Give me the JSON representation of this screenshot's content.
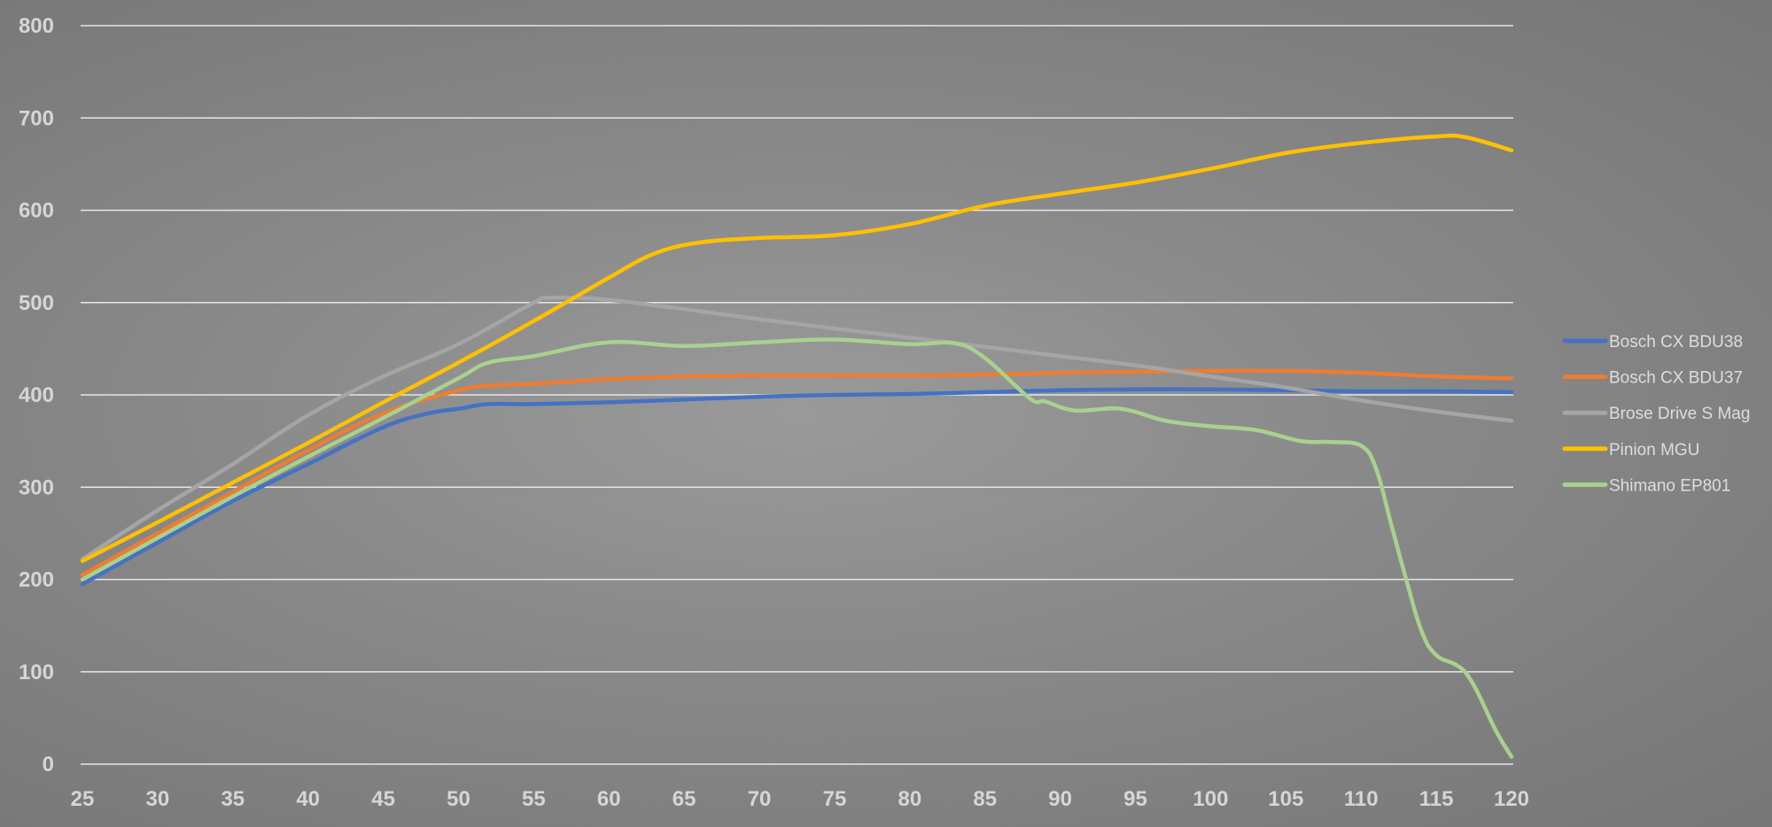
{
  "chart_data": {
    "type": "line",
    "title": "",
    "xlabel": "",
    "ylabel": "",
    "xlim": [
      25,
      120
    ],
    "ylim": [
      0,
      800
    ],
    "x_ticks": [
      25,
      30,
      35,
      40,
      45,
      50,
      55,
      60,
      65,
      70,
      75,
      80,
      85,
      90,
      95,
      100,
      105,
      110,
      115,
      120
    ],
    "y_ticks": [
      0,
      100,
      200,
      300,
      400,
      500,
      600,
      700,
      800
    ],
    "grid": "horizontal",
    "legend_position": "right",
    "series": [
      {
        "name": "Bosch CX BDU38",
        "color": "#4472c4",
        "x": [
          25,
          30,
          35,
          40,
          45,
          48,
          50,
          52,
          55,
          60,
          65,
          70,
          75,
          80,
          85,
          90,
          95,
          100,
          105,
          110,
          115,
          120
        ],
        "y": [
          195,
          240,
          285,
          325,
          365,
          380,
          385,
          390,
          390,
          392,
          395,
          398,
          400,
          401,
          403,
          405,
          406,
          406,
          405,
          404,
          404,
          403
        ]
      },
      {
        "name": "Bosch CX BDU37",
        "color": "#ed7d31",
        "x": [
          25,
          30,
          35,
          40,
          45,
          50,
          52,
          55,
          60,
          65,
          70,
          75,
          80,
          85,
          90,
          95,
          100,
          105,
          110,
          115,
          120
        ],
        "y": [
          205,
          250,
          295,
          340,
          380,
          405,
          410,
          412,
          417,
          420,
          421,
          421,
          421,
          422,
          424,
          425,
          426,
          426,
          424,
          420,
          418
        ]
      },
      {
        "name": "Brose Drive S Mag",
        "color": "#a5a5a5",
        "x": [
          25,
          30,
          35,
          40,
          45,
          50,
          55,
          56,
          58,
          60,
          65,
          70,
          75,
          80,
          85,
          90,
          95,
          100,
          105,
          110,
          115,
          120
        ],
        "y": [
          222,
          275,
          325,
          378,
          420,
          455,
          500,
          505,
          505,
          503,
          493,
          482,
          472,
          462,
          452,
          442,
          432,
          420,
          408,
          394,
          382,
          372
        ]
      },
      {
        "name": "Pinion MGU",
        "color": "#ffc000",
        "x": [
          25,
          30,
          35,
          40,
          45,
          50,
          55,
          60,
          63,
          66,
          70,
          75,
          80,
          85,
          90,
          95,
          100,
          105,
          110,
          115,
          117,
          120
        ],
        "y": [
          220,
          262,
          305,
          348,
          392,
          435,
          480,
          527,
          553,
          565,
          570,
          573,
          585,
          605,
          618,
          630,
          645,
          662,
          673,
          680,
          679,
          665
        ]
      },
      {
        "name": "Shimano EP801",
        "color": "#a9d18e",
        "x": [
          25,
          30,
          35,
          40,
          45,
          50,
          52,
          55,
          60,
          65,
          70,
          75,
          80,
          83,
          85,
          88,
          89,
          91,
          94,
          97,
          100,
          103,
          106,
          108,
          110,
          111,
          112,
          113,
          114,
          115,
          117,
          119,
          120
        ],
        "y": [
          200,
          245,
          290,
          333,
          375,
          418,
          435,
          442,
          457,
          453,
          457,
          460,
          455,
          456,
          440,
          396,
          393,
          383,
          385,
          372,
          366,
          362,
          350,
          349,
          345,
          320,
          260,
          200,
          145,
          118,
          98,
          35,
          8
        ]
      }
    ]
  }
}
